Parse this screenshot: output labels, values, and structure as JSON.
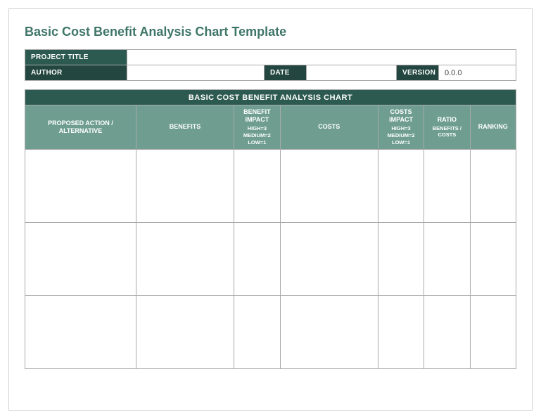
{
  "title": "Basic Cost Benefit Analysis Chart Template",
  "meta": {
    "project_title_label": "PROJECT TITLE",
    "project_title_value": "",
    "author_label": "AUTHOR",
    "author_value": "",
    "date_label": "DATE",
    "date_value": "",
    "version_label": "VERSION",
    "version_value": "0.0.0"
  },
  "chart": {
    "banner": "BASIC COST BENEFIT ANALYSIS CHART",
    "columns": [
      {
        "label": "PROPOSED ACTION / ALTERNATIVE",
        "sub": "",
        "width": 145
      },
      {
        "label": "BENEFITS",
        "sub": "",
        "width": 128
      },
      {
        "label": "BENEFIT IMPACT",
        "sub": "HIGH=3\nMEDIUM=2\nLOW=1",
        "width": 60
      },
      {
        "label": "COSTS",
        "sub": "",
        "width": 128
      },
      {
        "label": "COSTS IMPACT",
        "sub": "HIGH=3\nMEDIUM=2\nLOW=1",
        "width": 60
      },
      {
        "label": "RATIO",
        "sub": "BENEFITS / COSTS",
        "width": 60
      },
      {
        "label": "RANKING",
        "sub": "",
        "width": 60
      }
    ],
    "rows": [
      [
        "",
        "",
        "",
        "",
        "",
        "",
        ""
      ],
      [
        "",
        "",
        "",
        "",
        "",
        "",
        ""
      ],
      [
        "",
        "",
        "",
        "",
        "",
        "",
        ""
      ]
    ],
    "colors": {
      "title_text": "#3f7668",
      "header_dark": "#2c5a50",
      "header_darker": "#234740",
      "header_light": "#6f9e91",
      "border": "#a9a9a9",
      "page_border": "#d0d0d0",
      "background": "#ffffff"
    }
  }
}
